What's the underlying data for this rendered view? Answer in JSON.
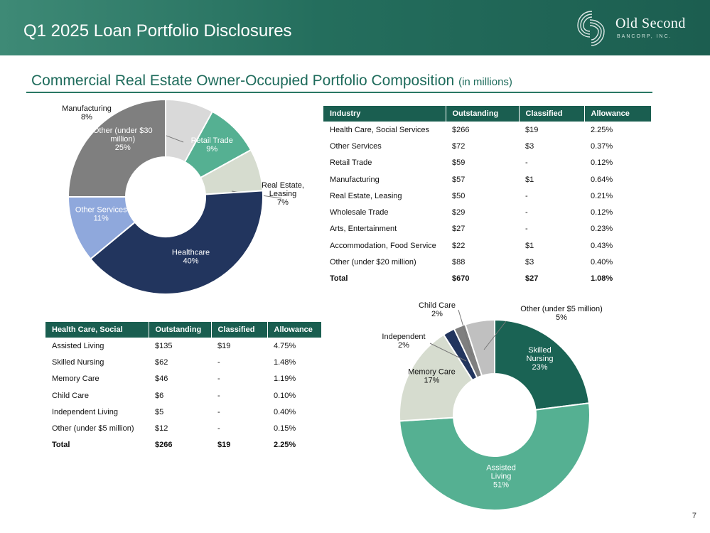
{
  "header": {
    "title": "Q1 2025 Loan Portfolio Disclosures"
  },
  "logo": {
    "name": "Old Second",
    "sub": "BANCORP, INC.",
    "icon": "old-second-logo-mark"
  },
  "section": {
    "title": "Commercial Real Estate Owner-Occupied Portfolio Composition",
    "unit": "(in millions)"
  },
  "industry_table": {
    "headers": [
      "Industry",
      "Outstanding",
      "Classified",
      "Allowance"
    ],
    "rows": [
      [
        "Health Care, Social Services",
        "$266",
        "$19",
        "2.25%"
      ],
      [
        "Other Services",
        "$72",
        "$3",
        "0.37%"
      ],
      [
        "Retail Trade",
        "$59",
        "-",
        "0.12%"
      ],
      [
        "Manufacturing",
        "$57",
        "$1",
        "0.64%"
      ],
      [
        "Real Estate, Leasing",
        "$50",
        "-",
        "0.21%"
      ],
      [
        "Wholesale Trade",
        "$29",
        "-",
        "0.12%"
      ],
      [
        "Arts, Entertainment",
        "$27",
        "-",
        "0.23%"
      ],
      [
        "Accommodation, Food Service",
        "$22",
        "$1",
        "0.43%"
      ],
      [
        "Other (under $20 million)",
        "$88",
        "$3",
        "0.40%"
      ]
    ],
    "total": [
      "Total",
      "$670",
      "$27",
      "1.08%"
    ]
  },
  "healthcare_table": {
    "headers": [
      "Health Care, Social",
      "Outstanding",
      "Classified",
      "Allowance"
    ],
    "rows": [
      [
        "Assisted Living",
        "$135",
        "$19",
        "4.75%"
      ],
      [
        "Skilled Nursing",
        "$62",
        "-",
        "1.48%"
      ],
      [
        "Memory Care",
        "$46",
        "-",
        "1.19%"
      ],
      [
        "Child Care",
        "$6",
        "-",
        "0.10%"
      ],
      [
        "Independent Living",
        "$5",
        "-",
        "0.40%"
      ],
      [
        "Other (under $5 million)",
        "$12",
        "-",
        "0.15%"
      ]
    ],
    "total": [
      "Total",
      "$266",
      "$19",
      "2.25%"
    ]
  },
  "page_number": "7",
  "chart_data": [
    {
      "type": "pie",
      "donut": true,
      "slices": [
        {
          "label": "Manufacturing",
          "value": 8,
          "pct_label": "8%",
          "color": "#d9d9d9"
        },
        {
          "label": "Retail Trade",
          "value": 9,
          "pct_label": "9%",
          "color": "#55b092"
        },
        {
          "label": "Real Estate, Leasing",
          "value": 7,
          "pct_label": "7%",
          "color": "#d6dccf"
        },
        {
          "label": "Healthcare",
          "value": 40,
          "pct_label": "40%",
          "color": "#22355e"
        },
        {
          "label": "Other Services",
          "value": 11,
          "pct_label": "11%",
          "color": "#8fa8dc"
        },
        {
          "label": "Other (under $30 million)",
          "value": 25,
          "pct_label": "25%",
          "color": "#7f7f7f"
        }
      ]
    },
    {
      "type": "pie",
      "donut": true,
      "slices": [
        {
          "label": "Skilled Nursing",
          "value": 23,
          "pct_label": "23%",
          "color": "#1a6354"
        },
        {
          "label": "Assisted Living",
          "value": 51,
          "pct_label": "51%",
          "color": "#55b092"
        },
        {
          "label": "Memory Care",
          "value": 17,
          "pct_label": "17%",
          "color": "#d6dccf"
        },
        {
          "label": "Independent",
          "value": 2,
          "pct_label": "2%",
          "color": "#22355e"
        },
        {
          "label": "Child Care",
          "value": 2,
          "pct_label": "2%",
          "color": "#7f7f7f"
        },
        {
          "label": "Other (under $5 million)",
          "value": 5,
          "pct_label": "5%",
          "color": "#c0c0c0"
        }
      ]
    }
  ]
}
